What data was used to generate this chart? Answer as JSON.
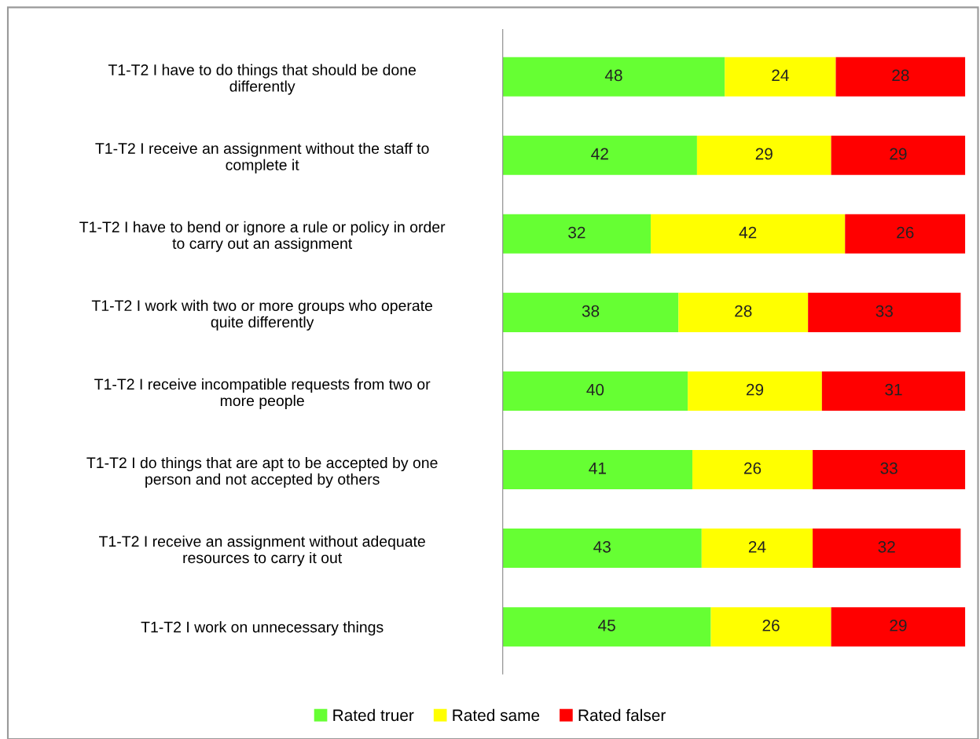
{
  "chart_data": {
    "type": "bar",
    "orientation": "horizontal",
    "stacked": true,
    "categories": [
      "T1-T2 I have to do things that should be done\ndifferently",
      "T1-T2 I receive an assignment without the staff to\ncomplete it",
      "T1-T2 I have to bend or ignore a rule or policy in order\nto carry out an assignment",
      "T1-T2 I work with two or more groups who operate\nquite differently",
      "T1-T2 I receive incompatible requests from two or\nmore people",
      "T1-T2 I do things that are apt to be accepted by one\nperson and not accepted by others",
      "T1-T2 I receive an assignment without adequate\nresources to carry it out",
      "T1-T2 I work on unnecessary things"
    ],
    "series": [
      {
        "name": "Rated truer",
        "color": "#66ff33",
        "values": [
          48,
          42,
          32,
          38,
          40,
          41,
          43,
          45
        ]
      },
      {
        "name": "Rated same",
        "color": "#ffff00",
        "values": [
          24,
          29,
          42,
          28,
          29,
          26,
          24,
          26
        ]
      },
      {
        "name": "Rated falser",
        "color": "#ff0000",
        "values": [
          28,
          29,
          26,
          33,
          31,
          33,
          32,
          29
        ]
      }
    ],
    "xlim": [
      0,
      100
    ],
    "tick_labels": "y",
    "data_labels": true,
    "grid": false,
    "legend": "bottom"
  }
}
